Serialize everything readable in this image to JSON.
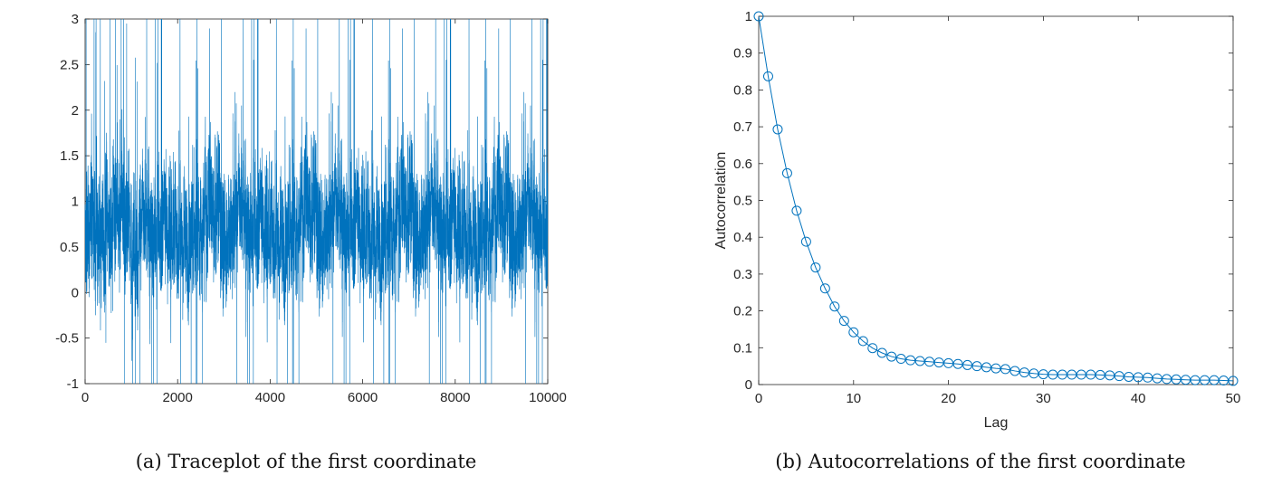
{
  "chart_data": [
    {
      "type": "line",
      "caption": "(a) Traceplot of the first coordinate",
      "xlabel": "",
      "ylabel": "",
      "xlim": [
        0,
        10000
      ],
      "ylim": [
        -1,
        3
      ],
      "xticks": [
        "0",
        "2000",
        "4000",
        "6000",
        "8000",
        "10000"
      ],
      "yticks": [
        "-1",
        "-0.5",
        "0",
        "0.5",
        "1",
        "1.5",
        "2",
        "2.5",
        "3"
      ],
      "n_iterations": 10000,
      "color": "#0072BD",
      "grid": false
    },
    {
      "type": "line",
      "caption": "(b) Autocorrelations of the first coordinate",
      "xlabel": "Lag",
      "ylabel": "Autocorrelation",
      "xlim": [
        0,
        50
      ],
      "ylim": [
        0,
        1
      ],
      "xticks": [
        "0",
        "10",
        "20",
        "30",
        "40",
        "50"
      ],
      "yticks": [
        "0",
        "0.1",
        "0.2",
        "0.3",
        "0.4",
        "0.5",
        "0.6",
        "0.7",
        "0.8",
        "0.9",
        "1"
      ],
      "marker": "circle",
      "color": "#0072BD",
      "grid": false,
      "x": [
        0,
        1,
        2,
        3,
        4,
        5,
        6,
        7,
        8,
        9,
        10,
        11,
        12,
        13,
        14,
        15,
        16,
        17,
        18,
        19,
        20,
        21,
        22,
        23,
        24,
        25,
        26,
        27,
        28,
        29,
        30,
        31,
        32,
        33,
        34,
        35,
        36,
        37,
        38,
        39,
        40,
        41,
        42,
        43,
        44,
        45,
        46,
        47,
        48,
        49,
        50
      ],
      "y": [
        1.0,
        0.837,
        0.693,
        0.574,
        0.472,
        0.388,
        0.318,
        0.261,
        0.212,
        0.173,
        0.142,
        0.118,
        0.099,
        0.086,
        0.076,
        0.07,
        0.066,
        0.064,
        0.062,
        0.06,
        0.058,
        0.056,
        0.053,
        0.05,
        0.047,
        0.044,
        0.042,
        0.037,
        0.033,
        0.03,
        0.028,
        0.027,
        0.027,
        0.027,
        0.027,
        0.027,
        0.026,
        0.025,
        0.023,
        0.021,
        0.02,
        0.019,
        0.017,
        0.015,
        0.014,
        0.013,
        0.012,
        0.012,
        0.012,
        0.011,
        0.01
      ]
    }
  ]
}
